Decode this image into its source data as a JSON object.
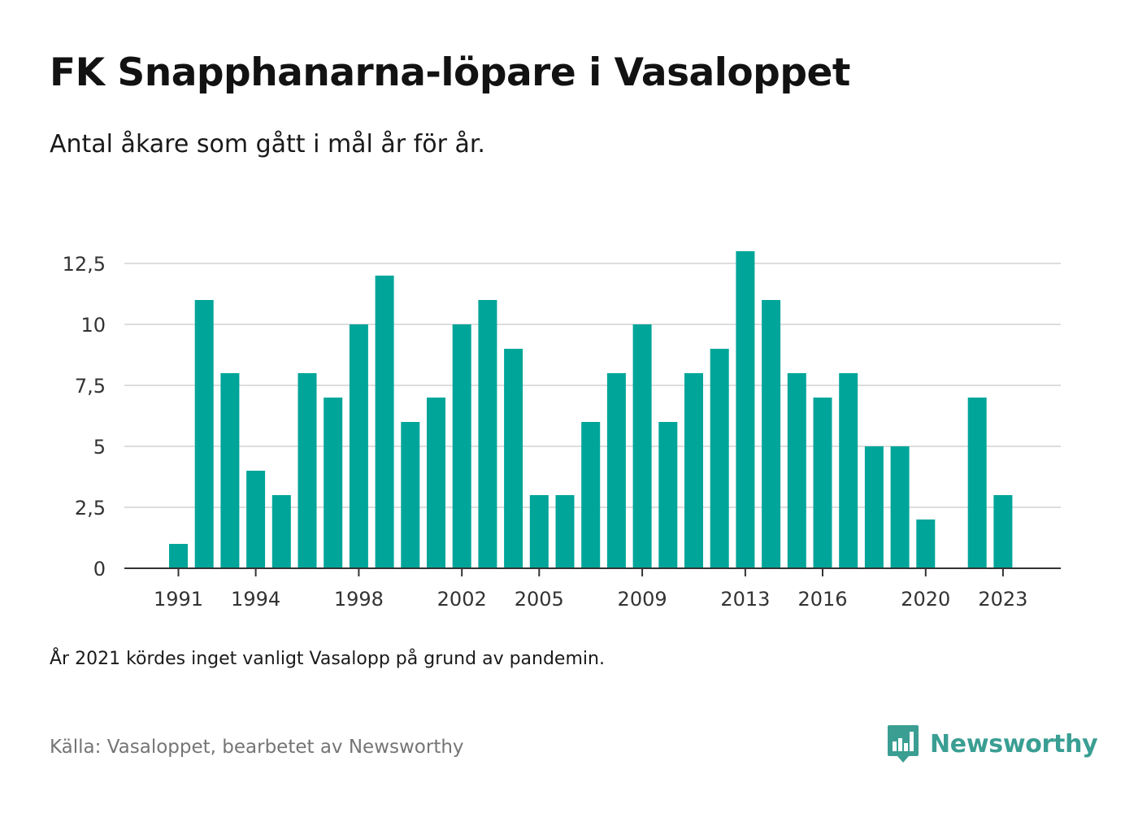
{
  "title": "FK Snapphanarna-löpare i Vasaloppet",
  "subtitle": "Antal åkare som gått i mål år för år.",
  "note": "År 2021 kördes inget vanligt Vasalopp på grund av pandemin.",
  "source": "Källa: Vasaloppet, bearbetet av Newsworthy",
  "brand": {
    "name": "Newsworthy",
    "icon": "newsworthy-logo-icon"
  },
  "colors": {
    "bar": "#00a59a",
    "grid": "#dddddd",
    "axis": "#333333",
    "brand": "#3a9e93"
  },
  "chart_data": {
    "type": "bar",
    "x": [
      1991,
      1992,
      1993,
      1994,
      1995,
      1996,
      1997,
      1998,
      1999,
      2000,
      2001,
      2002,
      2003,
      2004,
      2005,
      2006,
      2007,
      2008,
      2009,
      2010,
      2011,
      2012,
      2013,
      2014,
      2015,
      2016,
      2017,
      2018,
      2019,
      2020,
      2021,
      2022,
      2023
    ],
    "values": [
      1,
      11,
      8,
      4,
      3,
      8,
      7,
      10,
      12,
      6,
      7,
      10,
      11,
      9,
      3,
      3,
      6,
      8,
      10,
      6,
      8,
      9,
      13,
      11,
      8,
      7,
      8,
      5,
      5,
      2,
      0,
      7,
      3
    ],
    "x_ticks": [
      1991,
      1994,
      1998,
      2002,
      2005,
      2009,
      2013,
      2016,
      2020,
      2023
    ],
    "y_ticks": [
      0,
      2.5,
      5,
      7.5,
      10,
      12.5
    ],
    "y_tick_labels": [
      "0",
      "2,5",
      "5",
      "7,5",
      "10",
      "12,5"
    ],
    "ylim": [
      0,
      13
    ],
    "grid": true,
    "legend": "none"
  }
}
